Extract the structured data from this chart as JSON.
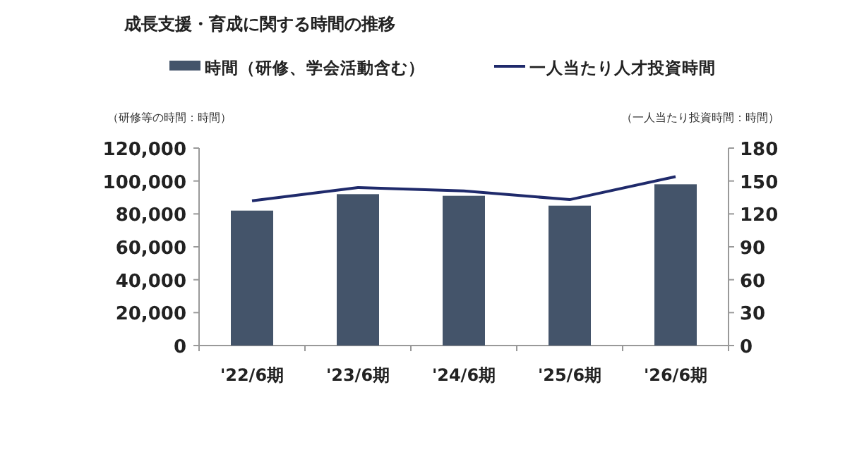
{
  "chart_data": {
    "type": "bar",
    "title": "成長支援・育成に関する時間の推移",
    "ylabel": "（研修等の時間：時間）",
    "y2label": "（一人当たり投資時間：時間）",
    "categories": [
      "'22/6期",
      "'23/6期",
      "'24/6期",
      "'25/6期",
      "'26/6期"
    ],
    "series": [
      {
        "name": "時間（研修、学会活動含む）",
        "color": "#44546a",
        "values": [
          82000,
          92000,
          91000,
          85000,
          98000
        ]
      },
      {
        "name": "一人当たり人才投資時間",
        "type": "line",
        "axis": "y2",
        "color": "#1f2a6b",
        "values": [
          132,
          144,
          141,
          133,
          154
        ]
      }
    ],
    "ylim": [
      0,
      120000
    ],
    "yticks": [
      {
        "value": 0,
        "label": "0"
      },
      {
        "value": 20000,
        "label": "20,000"
      },
      {
        "value": 40000,
        "label": "40,000"
      },
      {
        "value": 60000,
        "label": "60,000"
      },
      {
        "value": 80000,
        "label": "80,000"
      },
      {
        "value": 100000,
        "label": "100,000"
      },
      {
        "value": 120000,
        "label": "120,000"
      }
    ],
    "y2lim": [
      0,
      180
    ],
    "y2ticks": [
      0,
      30,
      60,
      90,
      120,
      150,
      180
    ],
    "legend": "top",
    "grid": false
  }
}
